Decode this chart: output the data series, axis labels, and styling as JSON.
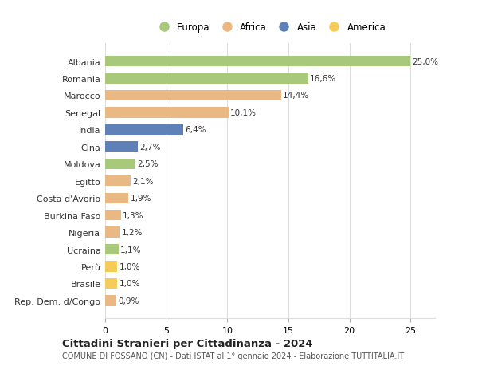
{
  "countries": [
    "Albania",
    "Romania",
    "Marocco",
    "Senegal",
    "India",
    "Cina",
    "Moldova",
    "Egitto",
    "Costa d'Avorio",
    "Burkina Faso",
    "Nigeria",
    "Ucraina",
    "Perù",
    "Brasile",
    "Rep. Dem. d/Congo"
  ],
  "values": [
    25.0,
    16.6,
    14.4,
    10.1,
    6.4,
    2.7,
    2.5,
    2.1,
    1.9,
    1.3,
    1.2,
    1.1,
    1.0,
    1.0,
    0.9
  ],
  "labels": [
    "25,0%",
    "16,6%",
    "14,4%",
    "10,1%",
    "6,4%",
    "2,7%",
    "2,5%",
    "2,1%",
    "1,9%",
    "1,3%",
    "1,2%",
    "1,1%",
    "1,0%",
    "1,0%",
    "0,9%"
  ],
  "continents": [
    "Europa",
    "Europa",
    "Africa",
    "Africa",
    "Asia",
    "Asia",
    "Europa",
    "Africa",
    "Africa",
    "Africa",
    "Africa",
    "Europa",
    "America",
    "America",
    "Africa"
  ],
  "continent_colors": {
    "Europa": "#a8c87a",
    "Africa": "#eab882",
    "Asia": "#6080b8",
    "America": "#f5cc5a"
  },
  "legend_order": [
    "Europa",
    "Africa",
    "Asia",
    "America"
  ],
  "title": "Cittadini Stranieri per Cittadinanza - 2024",
  "subtitle": "COMUNE DI FOSSANO (CN) - Dati ISTAT al 1° gennaio 2024 - Elaborazione TUTTITALIA.IT",
  "xlim": [
    0,
    27
  ],
  "xticks": [
    0,
    5,
    10,
    15,
    20,
    25
  ],
  "background_color": "#ffffff",
  "grid_color": "#dddddd"
}
